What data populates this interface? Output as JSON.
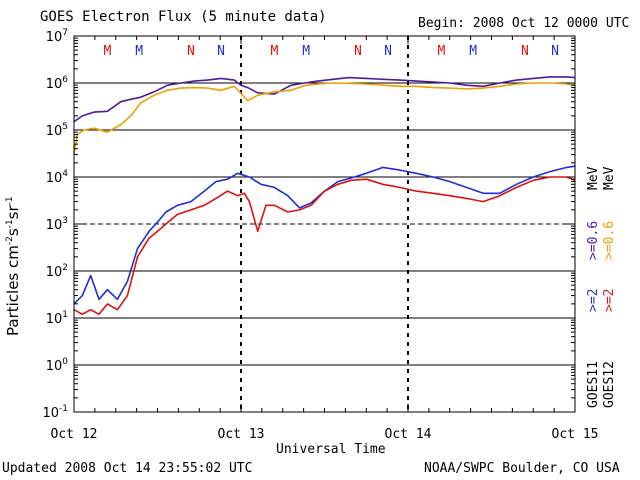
{
  "header": {
    "title": "GOES Electron Flux (5 minute data)",
    "begin": "Begin: 2008 Oct 12 0000 UTC"
  },
  "footer": {
    "updated": "Updated 2008 Oct 14 23:55:02 UTC",
    "credit": "NOAA/SWPC Boulder, CO USA"
  },
  "right_labels": {
    "goes11": "GOES11",
    "goes12": "GOES12",
    "ge2": ">=2",
    "ge06": ">=0.6",
    "mev": "MeV",
    "colors": {
      "ge2_goes11": "#1f2fd6",
      "ge2_goes12": "#e01010",
      "ge06_goes11": "#4b1aa0",
      "ge06_goes12": "#f0a000"
    }
  },
  "chart_data": {
    "type": "line",
    "title": "GOES Electron Flux (5 minute data)",
    "xlabel": "Universal Time",
    "ylabel": "Particles cm^-2 s^-1 sr^-1",
    "y_scale": "log",
    "ylim": [
      0.1,
      10000000
    ],
    "xlim_days": [
      0,
      3
    ],
    "x_ticks": [
      "Oct 12",
      "Oct 13",
      "Oct 14",
      "Oct 15"
    ],
    "y_ticks": [
      {
        "base": "10",
        "exp": "-1"
      },
      {
        "base": "10",
        "exp": "0"
      },
      {
        "base": "10",
        "exp": "1"
      },
      {
        "base": "10",
        "exp": "2"
      },
      {
        "base": "10",
        "exp": "3"
      },
      {
        "base": "10",
        "exp": "4"
      },
      {
        "base": "10",
        "exp": "5"
      },
      {
        "base": "10",
        "exp": "6"
      },
      {
        "base": "10",
        "exp": "7"
      }
    ],
    "threshold_dashed": 1000,
    "magnetopause_markers": [
      {
        "letter": "M",
        "day": 0.32,
        "color": "#e01010"
      },
      {
        "letter": "M",
        "day": 0.51,
        "color": "#1f2fd6"
      },
      {
        "letter": "N",
        "day": 0.82,
        "color": "#e01010"
      },
      {
        "letter": "N",
        "day": 1.0,
        "color": "#1f2fd6"
      },
      {
        "letter": "M",
        "day": 1.32,
        "color": "#e01010"
      },
      {
        "letter": "M",
        "day": 1.51,
        "color": "#1f2fd6"
      },
      {
        "letter": "N",
        "day": 1.82,
        "color": "#e01010"
      },
      {
        "letter": "N",
        "day": 2.0,
        "color": "#1f2fd6"
      },
      {
        "letter": "M",
        "day": 2.32,
        "color": "#e01010"
      },
      {
        "letter": "M",
        "day": 2.51,
        "color": "#1f2fd6"
      },
      {
        "letter": "N",
        "day": 2.82,
        "color": "#e01010"
      },
      {
        "letter": "N",
        "day": 3.0,
        "color": "#1f2fd6"
      }
    ],
    "series": [
      {
        "name": "GOES11 >=0.6 MeV",
        "color": "#4b1aa0",
        "x": [
          0,
          0.05,
          0.12,
          0.2,
          0.28,
          0.34,
          0.4,
          0.48,
          0.56,
          0.64,
          0.72,
          0.8,
          0.88,
          0.96,
          1.0,
          1.04,
          1.1,
          1.2,
          1.3,
          1.38,
          1.46,
          1.55,
          1.65,
          1.75,
          1.85,
          1.95,
          2.05,
          2.15,
          2.25,
          2.35,
          2.45,
          2.55,
          2.65,
          2.75,
          2.85,
          2.95,
          3.0
        ],
        "y": [
          150000,
          200000,
          240000,
          250000,
          400000,
          450000,
          500000,
          650000,
          900000,
          1000000,
          1100000,
          1150000,
          1250000,
          1150000,
          900000,
          800000,
          620000,
          580000,
          900000,
          1000000,
          1100000,
          1200000,
          1300000,
          1250000,
          1200000,
          1150000,
          1100000,
          1050000,
          1000000,
          900000,
          850000,
          1000000,
          1150000,
          1250000,
          1350000,
          1350000,
          1300000
        ]
      },
      {
        "name": "GOES12 >=0.6 MeV",
        "color": "#f0a000",
        "x": [
          0,
          0.02,
          0.06,
          0.12,
          0.2,
          0.28,
          0.34,
          0.4,
          0.48,
          0.56,
          0.64,
          0.72,
          0.8,
          0.88,
          0.96,
          1.0,
          1.04,
          1.1,
          1.2,
          1.3,
          1.38,
          1.46,
          1.55,
          1.65,
          1.75,
          1.85,
          1.95,
          2.05,
          2.15,
          2.25,
          2.35,
          2.45,
          2.55,
          2.65,
          2.75,
          2.85,
          2.95,
          3.0
        ],
        "y": [
          30000,
          80000,
          100000,
          110000,
          90000,
          130000,
          200000,
          380000,
          550000,
          700000,
          780000,
          800000,
          780000,
          700000,
          850000,
          600000,
          420000,
          550000,
          650000,
          700000,
          880000,
          950000,
          1000000,
          980000,
          950000,
          900000,
          850000,
          850000,
          800000,
          780000,
          750000,
          780000,
          850000,
          950000,
          1000000,
          1000000,
          950000,
          900000
        ]
      },
      {
        "name": "GOES11 >=2 MeV",
        "color": "#1f2fd6",
        "x": [
          0,
          0.05,
          0.1,
          0.15,
          0.2,
          0.26,
          0.32,
          0.38,
          0.45,
          0.5,
          0.55,
          0.62,
          0.7,
          0.78,
          0.85,
          0.92,
          0.98,
          1.05,
          1.12,
          1.2,
          1.28,
          1.35,
          1.42,
          1.5,
          1.58,
          1.66,
          1.75,
          1.85,
          1.95,
          2.05,
          2.15,
          2.25,
          2.35,
          2.45,
          2.55,
          2.65,
          2.75,
          2.85,
          2.95,
          3.0
        ],
        "y": [
          20,
          30,
          80,
          25,
          40,
          25,
          60,
          300,
          700,
          1100,
          1800,
          2500,
          3000,
          5000,
          8000,
          9000,
          12000,
          10000,
          7000,
          6000,
          4000,
          2200,
          2800,
          5000,
          8000,
          9500,
          12000,
          16000,
          14000,
          12000,
          10000,
          8000,
          6000,
          4500,
          4500,
          7000,
          10000,
          13000,
          16000,
          17000
        ]
      },
      {
        "name": "GOES12 >=2 MeV",
        "color": "#e01010",
        "x": [
          0,
          0.05,
          0.1,
          0.15,
          0.2,
          0.26,
          0.32,
          0.38,
          0.45,
          0.5,
          0.55,
          0.62,
          0.7,
          0.78,
          0.85,
          0.92,
          0.98,
          1.02,
          1.05,
          1.1,
          1.15,
          1.2,
          1.28,
          1.35,
          1.42,
          1.5,
          1.58,
          1.66,
          1.75,
          1.85,
          1.95,
          2.05,
          2.15,
          2.25,
          2.35,
          2.45,
          2.55,
          2.65,
          2.75,
          2.85,
          2.95,
          3.0
        ],
        "y": [
          15,
          12,
          15,
          12,
          20,
          15,
          30,
          200,
          500,
          700,
          1000,
          1600,
          2000,
          2500,
          3500,
          5000,
          4000,
          4500,
          3000,
          700,
          2500,
          2500,
          1800,
          2000,
          2500,
          5000,
          7000,
          8500,
          9000,
          7000,
          6000,
          5000,
          4500,
          4000,
          3500,
          3000,
          4000,
          6000,
          8500,
          10000,
          10000,
          8500
        ]
      }
    ]
  }
}
